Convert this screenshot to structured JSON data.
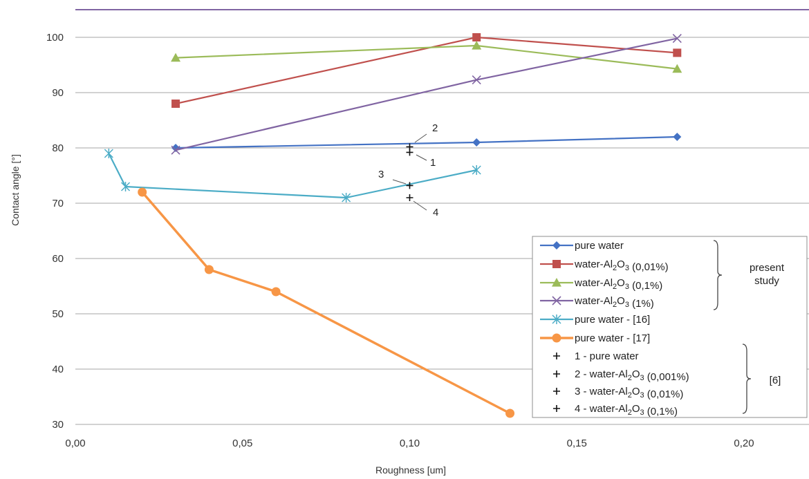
{
  "chart_data": {
    "type": "line",
    "xlabel": "Roughness [um]",
    "ylabel": "Contact angle [°]",
    "xlim": [
      0.0,
      0.22
    ],
    "ylim": [
      30,
      105
    ],
    "x_ticks": [
      "0,00",
      "0,05",
      "0,10",
      "0,15",
      "0,20"
    ],
    "y_ticks": [
      "30",
      "40",
      "50",
      "60",
      "70",
      "80",
      "90",
      "100"
    ],
    "grid": "horizontal",
    "legend_position": "bottom-right",
    "series": [
      {
        "name": "pure water",
        "marker": "diamond",
        "color": "#4472c4",
        "points": [
          [
            0.03,
            80.0
          ],
          [
            0.12,
            81.0
          ],
          [
            0.18,
            82.0
          ]
        ]
      },
      {
        "name": "water-Al2O3 (0,01%)",
        "marker": "square",
        "color": "#c0504d",
        "points": [
          [
            0.03,
            88.0
          ],
          [
            0.12,
            100.0
          ],
          [
            0.18,
            97.2
          ]
        ]
      },
      {
        "name": "water-Al2O3 (0,1%)",
        "marker": "triangle",
        "color": "#9bbb59",
        "points": [
          [
            0.03,
            96.3
          ],
          [
            0.12,
            98.5
          ],
          [
            0.18,
            94.3
          ]
        ]
      },
      {
        "name": "water-Al2O3 (1%)",
        "marker": "x",
        "color": "#8064a2",
        "points": [
          [
            0.03,
            79.6
          ],
          [
            0.12,
            92.3
          ],
          [
            0.18,
            99.8
          ]
        ]
      },
      {
        "name": "pure water - [16]",
        "marker": "asterisk",
        "color": "#4bacc6",
        "points": [
          [
            0.01,
            79.0
          ],
          [
            0.015,
            73.0
          ],
          [
            0.081,
            71.0
          ],
          [
            0.12,
            76.0
          ]
        ]
      },
      {
        "name": "pure water - [17]",
        "marker": "circle",
        "color": "#f79646",
        "points": [
          [
            0.02,
            72.0
          ],
          [
            0.04,
            58.0
          ],
          [
            0.06,
            54.0
          ],
          [
            0.13,
            32.0
          ]
        ]
      },
      {
        "name": "1 - pure water",
        "marker": "plus",
        "color": "#111111",
        "line": false,
        "points": [
          [
            0.1,
            79.2
          ]
        ]
      },
      {
        "name": "2 - water-Al2O3 (0,001%)",
        "marker": "plus",
        "color": "#111111",
        "line": false,
        "points": [
          [
            0.1,
            80.2
          ]
        ]
      },
      {
        "name": "3 - water-Al2O3 (0,01%)",
        "marker": "plus",
        "color": "#111111",
        "line": false,
        "points": [
          [
            0.1,
            73.2
          ]
        ]
      },
      {
        "name": "4 - water-Al2O3 (0,1%)",
        "marker": "plus",
        "color": "#111111",
        "line": false,
        "points": [
          [
            0.1,
            71.0
          ]
        ]
      }
    ],
    "point_labels": [
      "1",
      "2",
      "3",
      "4"
    ],
    "legend_groups": [
      {
        "label_lines": [
          "present",
          "study"
        ]
      },
      {
        "label_lines": [
          "[6]"
        ]
      }
    ],
    "top_line_color": "#8064a2"
  }
}
